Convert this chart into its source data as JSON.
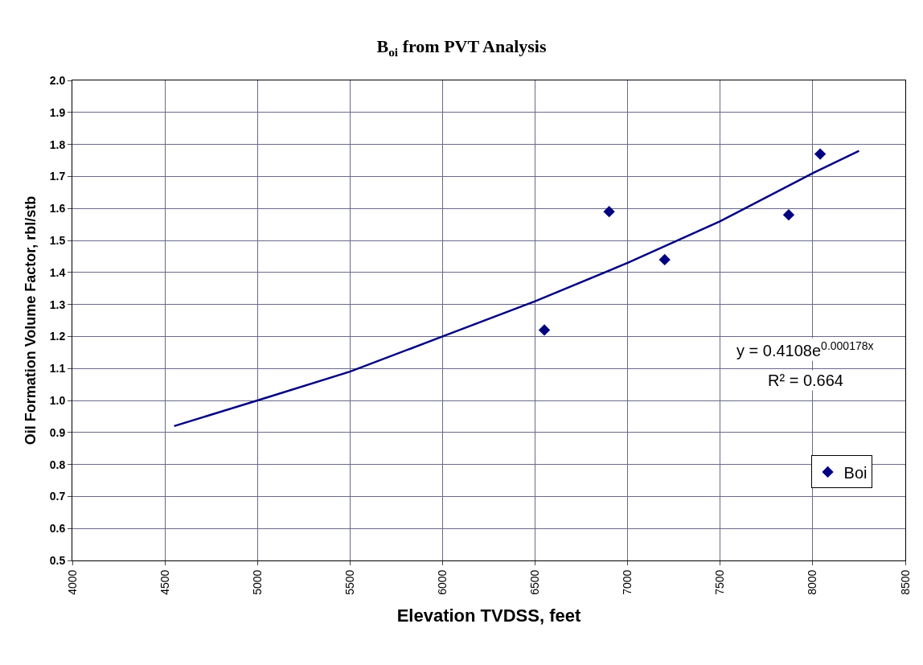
{
  "chart_data": {
    "type": "scatter",
    "title": "B$_{oi}$ from PVT Analysis",
    "xlabel": "Elevation TVDSS, feet",
    "ylabel": "Oil Formation Volume Factor, rbl/stb",
    "series": [
      {
        "name": "Boi",
        "color": "#000080",
        "marker": "diamond",
        "x": [
          6550,
          6900,
          7200,
          7870,
          8040
        ],
        "values": [
          1.22,
          1.59,
          1.44,
          1.58,
          1.77
        ]
      },
      {
        "type": "line",
        "color": "#000080",
        "marker": "none",
        "line_style": "solid",
        "x": [
          4550,
          5000,
          5500,
          6000,
          6500,
          7000,
          7500,
          8000,
          8250
        ],
        "values": [
          0.92,
          1.0,
          1.09,
          1.2,
          1.31,
          1.43,
          1.56,
          1.71,
          1.78
        ]
      }
    ],
    "xlim": [
      4000,
      8500
    ],
    "xticks": [
      4000,
      4500,
      5000,
      5500,
      6000,
      6500,
      7000,
      7500,
      8000,
      8500
    ],
    "ylim": [
      0.5,
      2.0
    ],
    "yticks": [
      0.5,
      0.6,
      0.7,
      0.8,
      0.9,
      {
        "value": 1,
        "label": "1.0"
      },
      1.1,
      1.2,
      1.3,
      1.4,
      1.5,
      1.6,
      1.7,
      1.8,
      1.9,
      {
        "value": 2,
        "label": "2.0"
      }
    ],
    "grid": true,
    "legend": "bottom right",
    "annotations": [
      "y = 0.4108e$^{0.000178x}$",
      "R² = 0.664"
    ]
  }
}
